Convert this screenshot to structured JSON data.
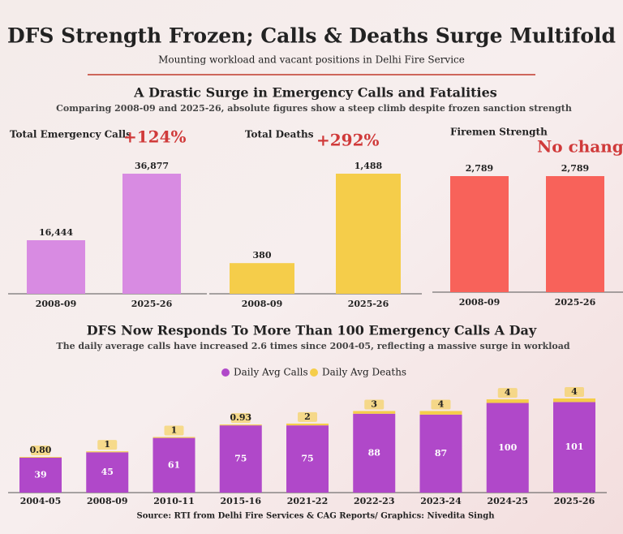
{
  "title": "DFS Strength Frozen; Calls & Deaths Surge Multifold",
  "subtitle": "Mounting workload and vacant positions in Delhi Fire Service",
  "section": {
    "title": "A Drastic Surge in Emergency Calls and Fatalities",
    "subtitle": "Comparing 2008-09 and 2025-26, absolute figures show a steep climb despite frozen sanction strength"
  },
  "source": "Source: RTI from Delhi Fire Services & CAG Reports/ Graphics: Nivedita Singh",
  "chart_data": [
    {
      "type": "bar",
      "title": "Total Emergency Calls",
      "annotation": "+124%",
      "categories": [
        "2008-09",
        "2025-26"
      ],
      "values": [
        16444,
        36877
      ],
      "value_labels": [
        "16,444",
        "36,877"
      ],
      "color": "#d88be2"
    },
    {
      "type": "bar",
      "title": "Total Deaths",
      "annotation": "+292%",
      "categories": [
        "2008-09",
        "2025-26"
      ],
      "values": [
        380,
        1488
      ],
      "value_labels": [
        "380",
        "1,488"
      ],
      "color": "#f5cd4a"
    },
    {
      "type": "bar",
      "title": "Firemen Strength",
      "annotation": "No change",
      "categories": [
        "2008-09",
        "2025-26"
      ],
      "values": [
        2789,
        2789
      ],
      "value_labels": [
        "2,789",
        "2,789"
      ],
      "color": "#f8625a"
    },
    {
      "type": "stacked_bar",
      "title": "DFS Now Responds To More Than 100 Emergency Calls A Day",
      "subtitle": "The daily average calls have increased 2.6 times since 2004-05, reflecting a massive surge in workload",
      "categories": [
        "2004-05",
        "2008-09",
        "2010-11",
        "2015-16",
        "2021-22",
        "2022-23",
        "2023-24",
        "2024-25",
        "2025-26"
      ],
      "series": [
        {
          "name": "Daily Avg Calls",
          "color": "#b048c9",
          "values": [
            39,
            45,
            61,
            75,
            75,
            88,
            87,
            100,
            101
          ]
        },
        {
          "name": "Daily Avg Deaths",
          "color": "#f5cd4a",
          "values": [
            0.8,
            1,
            1,
            0.93,
            2,
            3,
            4,
            4,
            4
          ],
          "value_labels": [
            "0.80",
            "1",
            "1",
            "0.93",
            "2",
            "3",
            "4",
            "4",
            "4"
          ]
        }
      ]
    }
  ]
}
